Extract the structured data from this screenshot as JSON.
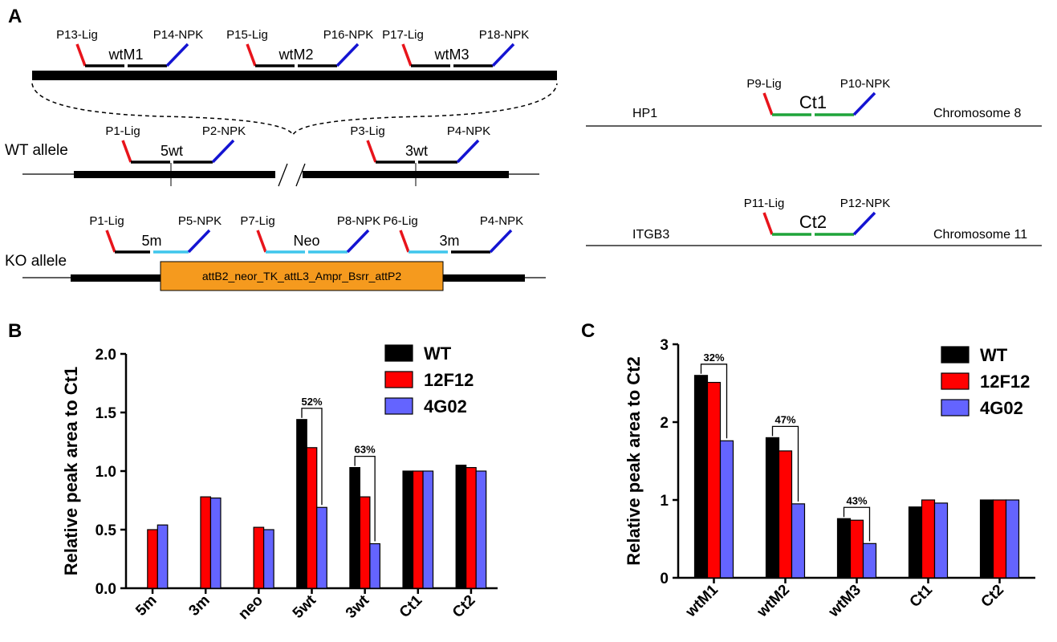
{
  "panel_a": {
    "letter": "A",
    "probes_top": [
      {
        "lig": "P13-Lig",
        "npk": "P14-NPK",
        "name": "wtM1"
      },
      {
        "lig": "P15-Lig",
        "npk": "P16-NPK",
        "name": "wtM2"
      },
      {
        "lig": "P17-Lig",
        "npk": "P18-NPK",
        "name": "wtM3"
      }
    ],
    "wt_allele": {
      "label": "WT allele",
      "probes": [
        {
          "lig": "P1-Lig",
          "npk": "P2-NPK",
          "name": "5wt"
        },
        {
          "lig": "P3-Lig",
          "npk": "P4-NPK",
          "name": "3wt"
        }
      ]
    },
    "ko_allele": {
      "label": "KO allele",
      "probes": [
        {
          "lig": "P1-Lig",
          "npk": "P5-NPK",
          "name": "5m"
        },
        {
          "lig": "P7-Lig",
          "npk": "P8-NPK",
          "name": "Neo"
        },
        {
          "lig": "P6-Lig",
          "npk": "P4-NPK",
          "name": "3m"
        }
      ],
      "cassette": "attB2_neor_TK_attL3_Ampr_Bsrr_attP2"
    },
    "controls": [
      {
        "gene": "HP1",
        "lig": "P9-Lig",
        "npk": "P10-NPK",
        "name": "Ct1",
        "chromosome": "Chromosome 8"
      },
      {
        "gene": "ITGB3",
        "lig": "P11-Lig",
        "npk": "P12-NPK",
        "name": "Ct2",
        "chromosome": "Chromosome 11"
      }
    ],
    "colors": {
      "lig": "#e8141b",
      "npk": "#1414d2",
      "control": "#1fa43a",
      "ko_probe": "#3fc6ec",
      "cassette": "#f59a1e"
    }
  },
  "chart_data": [
    {
      "panel": "B",
      "type": "bar",
      "ylabel": "Relative peak area to Ct1",
      "xlabel": "",
      "ylim": [
        0,
        2.0
      ],
      "yticks": [
        "0.0",
        "0.5",
        "1.0",
        "1.5",
        "2.0"
      ],
      "categories": [
        "5m",
        "3m",
        "neo",
        "5wt",
        "3wt",
        "Ct1",
        "Ct2"
      ],
      "series": [
        {
          "name": "WT",
          "color": "#000000",
          "values": [
            0,
            0,
            0,
            1.44,
            1.03,
            1.0,
            1.05
          ]
        },
        {
          "name": "12F12",
          "color": "#ff0000",
          "values": [
            0.5,
            0.78,
            0.52,
            1.2,
            0.78,
            1.0,
            1.03
          ]
        },
        {
          "name": "4G02",
          "color": "#6464ff",
          "values": [
            0.54,
            0.77,
            0.5,
            0.69,
            0.38,
            1.0,
            1.0
          ]
        }
      ],
      "annotations": [
        {
          "category": "5wt",
          "text": "52%"
        },
        {
          "category": "3wt",
          "text": "63%"
        }
      ],
      "legend": "top-right"
    },
    {
      "panel": "C",
      "type": "bar",
      "ylabel": "Relative peak area to Ct2",
      "xlabel": "",
      "ylim": [
        0,
        3
      ],
      "yticks": [
        "0",
        "1",
        "2",
        "3"
      ],
      "categories": [
        "wtM1",
        "wtM2",
        "wtM3",
        "Ct1",
        "Ct2"
      ],
      "series": [
        {
          "name": "WT",
          "color": "#000000",
          "values": [
            2.6,
            1.8,
            0.76,
            0.91,
            1.0
          ]
        },
        {
          "name": "12F12",
          "color": "#ff0000",
          "values": [
            2.51,
            1.63,
            0.74,
            1.0,
            1.0
          ]
        },
        {
          "name": "4G02",
          "color": "#6464ff",
          "values": [
            1.76,
            0.95,
            0.44,
            0.96,
            1.0
          ]
        }
      ],
      "annotations": [
        {
          "category": "wtM1",
          "text": "32%"
        },
        {
          "category": "wtM2",
          "text": "47%"
        },
        {
          "category": "wtM3",
          "text": "43%"
        }
      ],
      "legend": "top-right"
    }
  ]
}
